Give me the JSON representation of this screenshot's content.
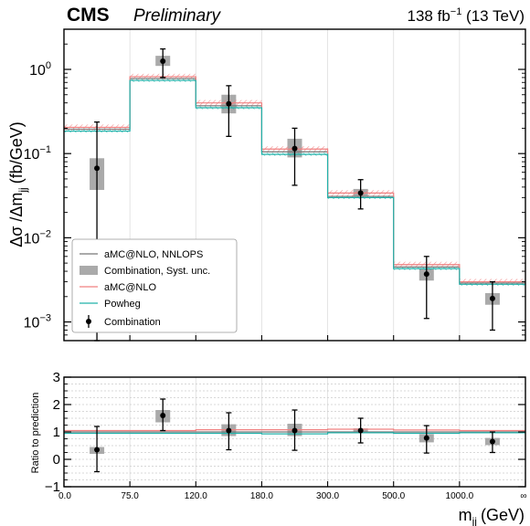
{
  "header": {
    "experiment": "CMS",
    "status": "Preliminary",
    "lumi_prefix": "138 fb",
    "lumi_exp": "−1",
    "lumi_suffix": " (13 TeV)"
  },
  "chart_data": {
    "type": "line",
    "subtype": "histogram-with-ratio-panel",
    "xlabel_main": "m",
    "xlabel_sub": "jj",
    "xlabel_unit": "(GeV)",
    "ylabel_main_a": "Δσ /Δm",
    "ylabel_sub": "jj",
    "ylabel_main_b": "(fb/GeV)",
    "ylabel_ratio": "Ratio to prediction",
    "yscale": "log",
    "ylim": [
      0.0006,
      3.0
    ],
    "yticks": [
      {
        "value": 1,
        "base": "10",
        "exp": "0"
      },
      {
        "value": 0.1,
        "base": "10",
        "exp": "−1"
      },
      {
        "value": 0.01,
        "base": "10",
        "exp": "−2"
      },
      {
        "value": 0.001,
        "base": "10",
        "exp": "−3"
      }
    ],
    "ratio_ylim": [
      -1,
      3
    ],
    "ratio_yticks": [
      "3",
      "2",
      "1",
      "0",
      "−1"
    ],
    "bin_edges_labels": [
      "0.0",
      "75.0",
      "120.0",
      "180.0",
      "300.0",
      "500.0",
      "1000.0",
      "∞"
    ],
    "grid": true,
    "legend_position": "bottom-left",
    "legend": [
      {
        "label": "aMC@NLO, NNLOPS",
        "style": "line",
        "color": "#777777"
      },
      {
        "label": "Combination, Syst. unc.",
        "style": "box",
        "color": "#aaaaaa"
      },
      {
        "label": "aMC@NLO",
        "style": "line",
        "color": "#f08080"
      },
      {
        "label": "Powheg",
        "style": "line",
        "color": "#20b2aa"
      },
      {
        "label": "Combination",
        "style": "errorbar",
        "color": "#000000"
      }
    ],
    "series": [
      {
        "name": "aMC@NLO, NNLOPS",
        "values": [
          0.195,
          0.78,
          0.37,
          0.105,
          0.031,
          0.0045,
          0.0029
        ]
      },
      {
        "name": "aMC@NLO",
        "values": [
          0.205,
          0.82,
          0.4,
          0.113,
          0.034,
          0.0048,
          0.003
        ]
      },
      {
        "name": "Powheg",
        "values": [
          0.185,
          0.74,
          0.35,
          0.098,
          0.03,
          0.0043,
          0.0028
        ]
      },
      {
        "name": "Combination",
        "values": [
          0.067,
          1.25,
          0.39,
          0.115,
          0.034,
          0.0037,
          0.0019
        ],
        "err_low": [
          0.067,
          0.45,
          0.23,
          0.073,
          0.012,
          0.0026,
          0.0011
        ],
        "err_high": [
          0.17,
          0.5,
          0.25,
          0.085,
          0.015,
          0.0023,
          0.0011
        ],
        "syst_low": [
          0.037,
          1.1,
          0.3,
          0.09,
          0.031,
          0.0031,
          0.0016
        ],
        "syst_high": [
          0.088,
          1.45,
          0.5,
          0.15,
          0.038,
          0.0043,
          0.0022
        ]
      }
    ],
    "ratio": {
      "values": [
        0.35,
        1.6,
        1.05,
        1.05,
        1.05,
        0.78,
        0.65
      ],
      "err_low": [
        0.8,
        0.55,
        0.7,
        0.72,
        0.45,
        0.55,
        0.4
      ],
      "err_high": [
        0.85,
        0.6,
        0.65,
        0.75,
        0.45,
        0.45,
        0.35
      ],
      "syst_low": [
        0.2,
        1.35,
        0.85,
        0.85,
        0.95,
        0.62,
        0.52
      ],
      "syst_high": [
        0.45,
        1.8,
        1.28,
        1.3,
        1.13,
        0.92,
        0.78
      ],
      "amcnlo": [
        1.05,
        1.05,
        1.08,
        1.08,
        1.1,
        1.07,
        1.05
      ],
      "powheg": [
        0.95,
        0.95,
        0.95,
        0.93,
        0.97,
        0.95,
        0.97
      ],
      "nnlops": [
        1.0,
        1.0,
        1.0,
        1.0,
        1.0,
        1.0,
        1.0
      ]
    }
  }
}
